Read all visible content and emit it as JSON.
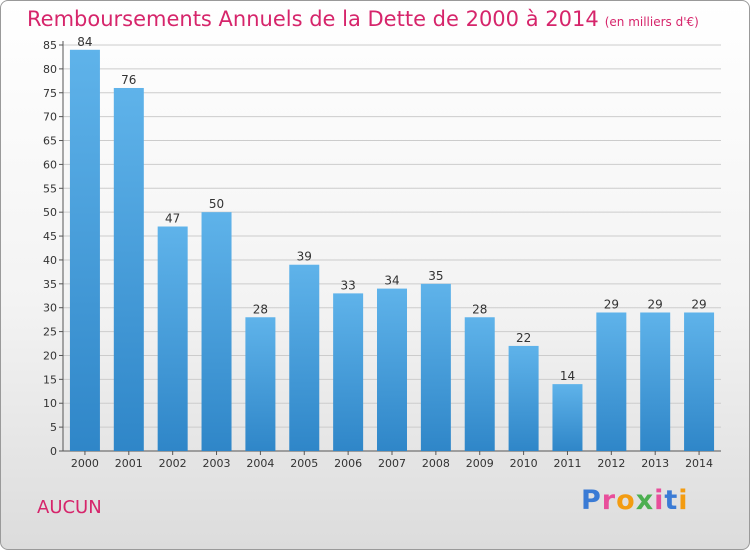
{
  "title": "Remboursements Annuels de la Dette de 2000 à 2014",
  "unit_note": "(en milliers d'€)",
  "commune": "AUCUN",
  "logo": {
    "text": "Proxiti",
    "colors": [
      "#3a7bd5",
      "#e84e9b",
      "#f39c12",
      "#4caf50",
      "#e84e9b",
      "#3a7bd5",
      "#f39c12"
    ]
  },
  "colors": {
    "title": "#d6256b",
    "bar_top": "#5fb3ea",
    "bar_bottom": "#2f86c8",
    "grid": "#cccccc"
  },
  "chart_data": {
    "type": "bar",
    "title": "Remboursements Annuels de la Dette de 2000 à 2014",
    "xlabel": "",
    "ylabel": "",
    "categories": [
      "2000",
      "2001",
      "2002",
      "2003",
      "2004",
      "2005",
      "2006",
      "2007",
      "2008",
      "2009",
      "2010",
      "2011",
      "2012",
      "2013",
      "2014"
    ],
    "values": [
      84,
      76,
      47,
      50,
      28,
      39,
      33,
      34,
      35,
      28,
      22,
      14,
      29,
      29,
      29
    ],
    "ylim": [
      0,
      85
    ],
    "yticks": [
      0,
      5,
      10,
      15,
      20,
      25,
      30,
      35,
      40,
      45,
      50,
      55,
      60,
      65,
      70,
      75,
      80,
      85
    ],
    "grid": true,
    "legend": "none"
  }
}
